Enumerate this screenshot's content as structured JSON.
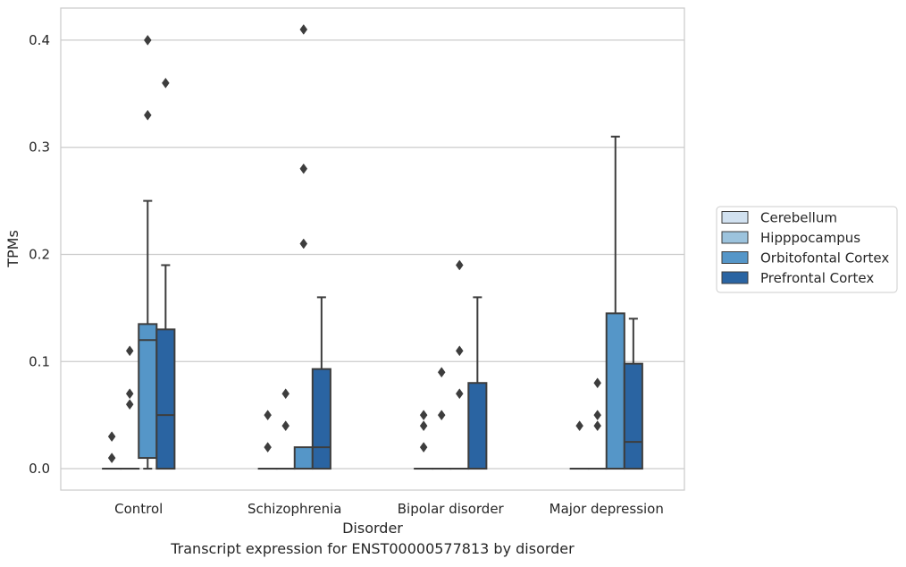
{
  "caption": "Transcript expression for ENST00000577813 by disorder",
  "chart_data": {
    "type": "box",
    "title": "",
    "xlabel": "Disorder",
    "ylabel": "TPMs",
    "ylim": [
      -0.02,
      0.43
    ],
    "yticks": [
      0.0,
      0.1,
      0.2,
      0.3,
      0.4
    ],
    "ytick_labels": [
      "0.0",
      "0.1",
      "0.2",
      "0.3",
      "0.4"
    ],
    "grid": "horizontal",
    "legend_position": "right",
    "categories": [
      "Control",
      "Schizophrenia",
      "Bipolar disorder",
      "Major depression"
    ],
    "series": [
      {
        "name": "Cerebellum",
        "color": "#d1e1f0",
        "boxes": [
          {
            "q1": 0,
            "median": 0,
            "q3": 0,
            "whisker_low": 0,
            "whisker_high": 0,
            "outliers": [
              0.01,
              0.03
            ]
          },
          {
            "q1": 0,
            "median": 0,
            "q3": 0,
            "whisker_low": 0,
            "whisker_high": 0,
            "outliers": [
              0.02,
              0.05
            ]
          },
          {
            "q1": 0,
            "median": 0,
            "q3": 0,
            "whisker_low": 0,
            "whisker_high": 0,
            "outliers": [
              0.02,
              0.04,
              0.05
            ]
          },
          {
            "q1": 0,
            "median": 0,
            "q3": 0,
            "whisker_low": 0,
            "whisker_high": 0,
            "outliers": [
              0.04
            ]
          }
        ]
      },
      {
        "name": "Hipppocampus",
        "color": "#9cc3dd",
        "boxes": [
          {
            "q1": 0,
            "median": 0,
            "q3": 0,
            "whisker_low": 0,
            "whisker_high": 0,
            "outliers": [
              0.06,
              0.07,
              0.11
            ]
          },
          {
            "q1": 0,
            "median": 0,
            "q3": 0,
            "whisker_low": 0,
            "whisker_high": 0,
            "outliers": [
              0.04,
              0.07
            ]
          },
          {
            "q1": 0,
            "median": 0,
            "q3": 0,
            "whisker_low": 0,
            "whisker_high": 0,
            "outliers": [
              0.05,
              0.09
            ]
          },
          {
            "q1": 0,
            "median": 0,
            "q3": 0,
            "whisker_low": 0,
            "whisker_high": 0,
            "outliers": [
              0.04,
              0.05,
              0.08
            ]
          }
        ]
      },
      {
        "name": "Orbitofontal Cortex",
        "color": "#5596c8",
        "boxes": [
          {
            "q1": 0.01,
            "median": 0.12,
            "q3": 0.135,
            "whisker_low": 0,
            "whisker_high": 0.25,
            "outliers": [
              0.33,
              0.4
            ]
          },
          {
            "q1": 0,
            "median": 0,
            "q3": 0.02,
            "whisker_low": 0,
            "whisker_high": 0.02,
            "outliers": [
              0.21,
              0.28,
              0.41
            ]
          },
          {
            "q1": 0,
            "median": 0,
            "q3": 0,
            "whisker_low": 0,
            "whisker_high": 0,
            "outliers": [
              0.07,
              0.11,
              0.19
            ]
          },
          {
            "q1": 0,
            "median": 0,
            "q3": 0.145,
            "whisker_low": 0,
            "whisker_high": 0.31,
            "outliers": []
          }
        ]
      },
      {
        "name": "Prefrontal Cortex",
        "color": "#2a64a2",
        "boxes": [
          {
            "q1": 0,
            "median": 0.05,
            "q3": 0.13,
            "whisker_low": 0,
            "whisker_high": 0.19,
            "outliers": [
              0.36
            ]
          },
          {
            "q1": 0,
            "median": 0.02,
            "q3": 0.093,
            "whisker_low": 0,
            "whisker_high": 0.16,
            "outliers": []
          },
          {
            "q1": 0,
            "median": 0,
            "q3": 0.08,
            "whisker_low": 0,
            "whisker_high": 0.16,
            "outliers": []
          },
          {
            "q1": 0,
            "median": 0.025,
            "q3": 0.098,
            "whisker_low": 0,
            "whisker_high": 0.14,
            "outliers": []
          }
        ]
      }
    ]
  }
}
